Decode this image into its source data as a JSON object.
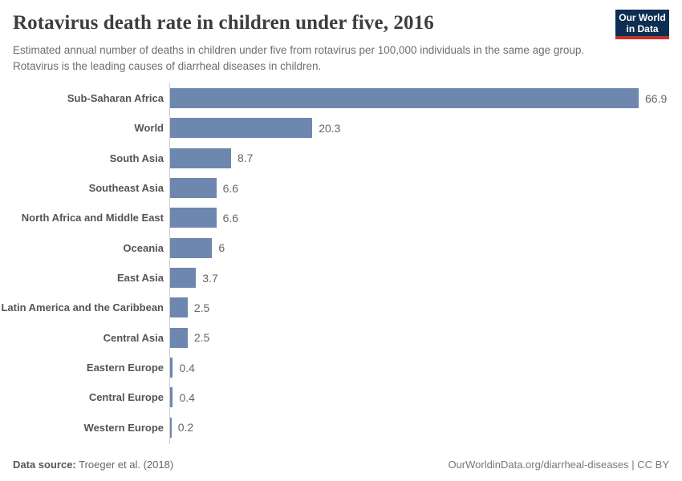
{
  "header": {
    "title": "Rotavirus death rate in children under five, 2016",
    "subtitle": "Estimated annual number of deaths in children under five from rotavirus per 100,000 individuals in the same age group. Rotavirus is the leading causes of diarrheal diseases in children.",
    "logo": {
      "line1": "Our World",
      "line2": "in Data"
    }
  },
  "chart_data": {
    "type": "bar",
    "orientation": "horizontal",
    "title": "Rotavirus death rate in children under five, 2016",
    "categories": [
      "Sub-Saharan Africa",
      "World",
      "South Asia",
      "Southeast Asia",
      "North Africa and Middle East",
      "Oceania",
      "East Asia",
      "Latin America and the Caribbean",
      "Central Asia",
      "Eastern Europe",
      "Central Europe",
      "Western Europe"
    ],
    "values": [
      66.9,
      20.3,
      8.7,
      6.6,
      6.6,
      6,
      3.7,
      2.5,
      2.5,
      0.4,
      0.4,
      0.2
    ],
    "value_labels": [
      "66.9",
      "20.3",
      "8.7",
      "6.6",
      "6.6",
      "6",
      "3.7",
      "2.5",
      "2.5",
      "0.4",
      "0.4",
      "0.2"
    ],
    "xlim": [
      0,
      66.9
    ],
    "grid": false,
    "legend": false
  },
  "colors": {
    "bar": "#6e87ae",
    "axis_line": "#cccccc",
    "category_label": "#545454",
    "value_label": "#666666",
    "logo_bg": "#0d2e52",
    "logo_stripe": "#c9302c"
  },
  "footer": {
    "datasource_label": "Data source:",
    "datasource_value": "Troeger et al. (2018)",
    "attribution": "OurWorldinData.org/diarrheal-diseases | CC BY"
  }
}
